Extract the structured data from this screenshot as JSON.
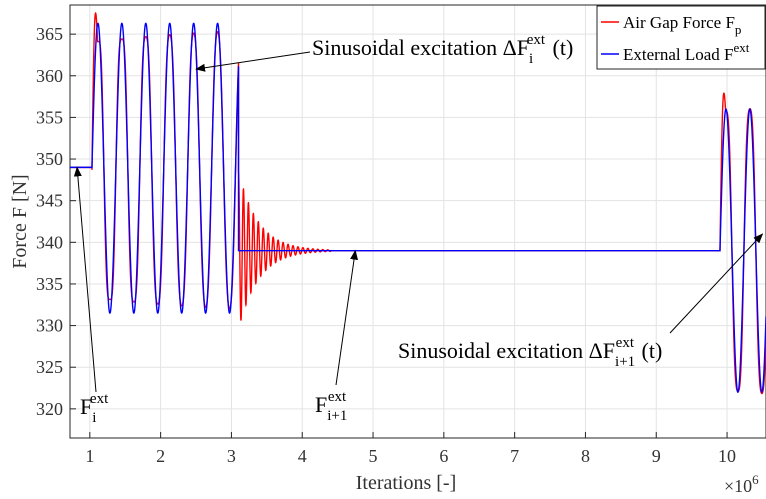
{
  "chart_data": {
    "type": "line",
    "xlabel": "Iterations [-]",
    "ylabel": "Force  F [N]",
    "xlim": [
      0.72,
      10.55
    ],
    "ylim": [
      316.5,
      368.5
    ],
    "x_exponent": "×10",
    "x_exponent_power": "6",
    "x_ticks": [
      1,
      2,
      3,
      4,
      5,
      6,
      7,
      8,
      9,
      10
    ],
    "y_ticks": [
      320,
      325,
      330,
      335,
      340,
      345,
      350,
      355,
      360,
      365
    ],
    "grid": true,
    "legend_position": "top-right",
    "series": [
      {
        "name": "Air Gap Force  F",
        "name_subscript": "p",
        "color": "#ff0000",
        "segments": [
          {
            "kind": "flat",
            "x": [
              0.72,
              1.03
            ],
            "y": 349
          },
          {
            "kind": "sine",
            "x": [
              1.03,
              3.1
            ],
            "amplitude": 17.5,
            "period": 0.338,
            "base": 348.7,
            "overshoot": 2.2
          },
          {
            "kind": "decay",
            "x": [
              3.1,
              4.4
            ],
            "start_amplitude": 9.5,
            "period": 0.07,
            "base": 339
          },
          {
            "kind": "flat",
            "x": [
              4.4,
              9.9
            ],
            "y": 339
          },
          {
            "kind": "sine",
            "x": [
              9.9,
              10.55
            ],
            "amplitude": 18.5,
            "period": 0.338,
            "base": 339,
            "overshoot": 1.8
          }
        ]
      },
      {
        "name": "External Load  F",
        "name_superscript": "ext",
        "color": "#0000ff",
        "segments": [
          {
            "kind": "flat",
            "x": [
              0.72,
              1.03
            ],
            "y": 349
          },
          {
            "kind": "sine",
            "x": [
              1.03,
              3.1
            ],
            "amplitude": 17.4,
            "period": 0.338,
            "base": 348.9,
            "overshoot": 0
          },
          {
            "kind": "flat",
            "x": [
              3.1,
              9.9
            ],
            "y": 339
          },
          {
            "kind": "sine",
            "x": [
              9.9,
              10.55
            ],
            "amplitude": 17,
            "period": 0.338,
            "base": 339,
            "overshoot": 0
          }
        ]
      }
    ],
    "annotations": [
      {
        "id": "fi",
        "base": "F",
        "sub": "i",
        "sup": "ext",
        "suffix": "",
        "arrow_to": [
          0.82,
          349
        ]
      },
      {
        "id": "fi1",
        "base": "F",
        "sub": "i+1",
        "sup": "ext",
        "suffix": "",
        "arrow_to": [
          4.75,
          339
        ]
      },
      {
        "id": "dfi",
        "base": "Sinusoidal excitation ΔF",
        "sub": "i",
        "sup": "ext",
        "suffix": " (t)",
        "arrow_to": [
          2.5,
          360.8
        ]
      },
      {
        "id": "dfi1",
        "base": "Sinusoidal excitation ΔF",
        "sub": "i+1",
        "sup": "ext",
        "suffix": " (t)",
        "arrow_to": [
          10.5,
          341
        ]
      }
    ]
  }
}
